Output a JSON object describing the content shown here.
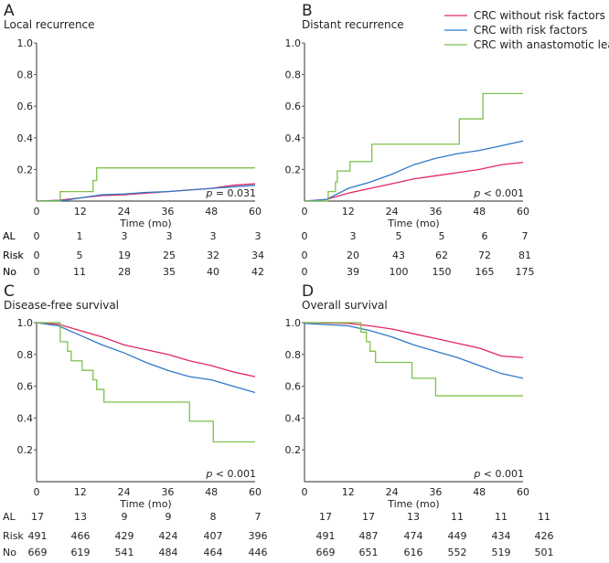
{
  "colors": {
    "no_risk": "#e2275f",
    "risk": "#2f7ac6",
    "leak": "#7fc14a",
    "axis": "#555555"
  },
  "legend": [
    {
      "key": "no_risk",
      "label": "CRC without risk factors"
    },
    {
      "key": "risk",
      "label": "CRC with risk  factors"
    },
    {
      "key": "leak",
      "label": "CRC with anastomotic leak"
    }
  ],
  "chart_data": [
    {
      "type": "line",
      "letter": "A",
      "title": "Local recurrence",
      "xlabel": "Time (mo)",
      "xlim": [
        0,
        60
      ],
      "ylim": [
        0,
        1
      ],
      "xticks": [
        "0",
        "12",
        "24",
        "36",
        "48",
        "60"
      ],
      "yticks": [
        "0.2",
        "0.4",
        "0.6",
        "0.8",
        "1.0"
      ],
      "p_value": "p = 0.031",
      "series": [
        {
          "key": "no_risk",
          "step": false,
          "points": [
            [
              0,
              0
            ],
            [
              3,
              0.002
            ],
            [
              6,
              0.005
            ],
            [
              12,
              0.02
            ],
            [
              18,
              0.035
            ],
            [
              24,
              0.04
            ],
            [
              30,
              0.05
            ],
            [
              36,
              0.06
            ],
            [
              42,
              0.07
            ],
            [
              48,
              0.08
            ],
            [
              54,
              0.1
            ],
            [
              60,
              0.11
            ]
          ]
        },
        {
          "key": "risk",
          "step": false,
          "points": [
            [
              0,
              0
            ],
            [
              8,
              0.005
            ],
            [
              12,
              0.02
            ],
            [
              18,
              0.04
            ],
            [
              24,
              0.045
            ],
            [
              30,
              0.055
            ],
            [
              36,
              0.06
            ],
            [
              42,
              0.07
            ],
            [
              48,
              0.08
            ],
            [
              54,
              0.09
            ],
            [
              60,
              0.1
            ]
          ]
        },
        {
          "key": "leak",
          "step": true,
          "points": [
            [
              0,
              0
            ],
            [
              6.5,
              0.06
            ],
            [
              15.5,
              0.13
            ],
            [
              16.5,
              0.21
            ],
            [
              60,
              0.21
            ]
          ]
        }
      ],
      "risk_table": [
        {
          "label": "AL",
          "values": [
            "0",
            "1",
            "3",
            "3",
            "3",
            "3"
          ]
        },
        {
          "label": "Risk",
          "values": [
            "0",
            "5",
            "19",
            "25",
            "32",
            "34"
          ]
        },
        {
          "label": "No",
          "values": [
            "0",
            "11",
            "28",
            "35",
            "40",
            "42"
          ]
        }
      ]
    },
    {
      "type": "line",
      "letter": "B",
      "title": "Distant recurrence",
      "xlabel": "Time (mo)",
      "xlim": [
        0,
        60
      ],
      "ylim": [
        0,
        1
      ],
      "xticks": [
        "0",
        "12",
        "24",
        "36",
        "48",
        "60"
      ],
      "yticks": [
        "0.2",
        "0.4",
        "0.6",
        "0.8",
        "1.0"
      ],
      "p_value": "p < 0.001",
      "series": [
        {
          "key": "no_risk",
          "step": false,
          "points": [
            [
              0,
              0
            ],
            [
              6,
              0.01
            ],
            [
              12,
              0.05
            ],
            [
              18,
              0.08
            ],
            [
              24,
              0.11
            ],
            [
              30,
              0.14
            ],
            [
              36,
              0.16
            ],
            [
              42,
              0.18
            ],
            [
              48,
              0.2
            ],
            [
              54,
              0.23
            ],
            [
              60,
              0.245
            ]
          ]
        },
        {
          "key": "risk",
          "step": false,
          "points": [
            [
              0,
              0
            ],
            [
              6,
              0.01
            ],
            [
              12,
              0.08
            ],
            [
              18,
              0.12
            ],
            [
              24,
              0.17
            ],
            [
              30,
              0.23
            ],
            [
              36,
              0.27
            ],
            [
              42,
              0.3
            ],
            [
              48,
              0.32
            ],
            [
              54,
              0.35
            ],
            [
              60,
              0.38
            ]
          ]
        },
        {
          "key": "leak",
          "step": true,
          "points": [
            [
              0,
              0
            ],
            [
              6.5,
              0.06
            ],
            [
              8.5,
              0.12
            ],
            [
              9,
              0.19
            ],
            [
              12.5,
              0.25
            ],
            [
              18.5,
              0.36
            ],
            [
              42.5,
              0.52
            ],
            [
              49,
              0.68
            ],
            [
              60,
              0.68
            ]
          ]
        }
      ],
      "risk_table": [
        {
          "label": "AL",
          "values": [
            "0",
            "3",
            "5",
            "5",
            "6",
            "7"
          ]
        },
        {
          "label": "Risk",
          "values": [
            "0",
            "20",
            "43",
            "62",
            "72",
            "81"
          ]
        },
        {
          "label": "No",
          "values": [
            "0",
            "39",
            "100",
            "150",
            "165",
            "175"
          ]
        }
      ]
    },
    {
      "type": "line",
      "letter": "C",
      "title": "Disease-free survival",
      "xlabel": "Time (mo)",
      "xlim": [
        0,
        60
      ],
      "ylim": [
        0,
        1
      ],
      "xticks": [
        "0",
        "12",
        "24",
        "36",
        "48",
        "60"
      ],
      "yticks": [
        "0.2",
        "0.4",
        "0.6",
        "0.8",
        "1.0"
      ],
      "p_value": "p < 0.001",
      "series": [
        {
          "key": "no_risk",
          "step": false,
          "points": [
            [
              0,
              1
            ],
            [
              6,
              0.99
            ],
            [
              12,
              0.95
            ],
            [
              18,
              0.91
            ],
            [
              24,
              0.86
            ],
            [
              30,
              0.83
            ],
            [
              36,
              0.8
            ],
            [
              42,
              0.76
            ],
            [
              48,
              0.73
            ],
            [
              54,
              0.69
            ],
            [
              60,
              0.66
            ]
          ]
        },
        {
          "key": "risk",
          "step": false,
          "points": [
            [
              0,
              1
            ],
            [
              6,
              0.98
            ],
            [
              12,
              0.92
            ],
            [
              18,
              0.86
            ],
            [
              24,
              0.81
            ],
            [
              30,
              0.75
            ],
            [
              36,
              0.7
            ],
            [
              42,
              0.66
            ],
            [
              48,
              0.64
            ],
            [
              54,
              0.6
            ],
            [
              60,
              0.56
            ]
          ]
        },
        {
          "key": "leak",
          "step": true,
          "points": [
            [
              0,
              1
            ],
            [
              6.5,
              0.88
            ],
            [
              8.5,
              0.82
            ],
            [
              9.5,
              0.76
            ],
            [
              12.5,
              0.7
            ],
            [
              15.5,
              0.64
            ],
            [
              16.5,
              0.58
            ],
            [
              18.5,
              0.5
            ],
            [
              42,
              0.38
            ],
            [
              48.5,
              0.25
            ],
            [
              60,
              0.25
            ]
          ]
        }
      ],
      "risk_table": [
        {
          "label": "AL",
          "values": [
            "17",
            "13",
            "9",
            "9",
            "8",
            "7"
          ]
        },
        {
          "label": "Risk",
          "values": [
            "491",
            "466",
            "429",
            "424",
            "407",
            "396"
          ]
        },
        {
          "label": "No",
          "values": [
            "669",
            "619",
            "541",
            "484",
            "464",
            "446"
          ]
        }
      ]
    },
    {
      "type": "line",
      "letter": "D",
      "title": "Overall survival",
      "xlabel": "Time (mo)",
      "xlim": [
        0,
        60
      ],
      "ylim": [
        0,
        1
      ],
      "xticks": [
        "0",
        "12",
        "24",
        "36",
        "48",
        "60"
      ],
      "yticks": [
        "0.2",
        "0.4",
        "0.6",
        "0.8",
        "1.0"
      ],
      "p_value": "p < 0.001",
      "series": [
        {
          "key": "no_risk",
          "step": false,
          "points": [
            [
              0,
              1
            ],
            [
              12,
              0.995
            ],
            [
              18,
              0.98
            ],
            [
              24,
              0.96
            ],
            [
              30,
              0.93
            ],
            [
              36,
              0.9
            ],
            [
              42,
              0.87
            ],
            [
              48,
              0.84
            ],
            [
              54,
              0.79
            ],
            [
              60,
              0.78
            ]
          ]
        },
        {
          "key": "risk",
          "step": false,
          "points": [
            [
              0,
              0.995
            ],
            [
              12,
              0.98
            ],
            [
              18,
              0.95
            ],
            [
              24,
              0.91
            ],
            [
              30,
              0.86
            ],
            [
              36,
              0.82
            ],
            [
              42,
              0.78
            ],
            [
              48,
              0.73
            ],
            [
              54,
              0.68
            ],
            [
              60,
              0.65
            ]
          ]
        },
        {
          "key": "leak",
          "step": true,
          "points": [
            [
              0,
              1
            ],
            [
              15.5,
              0.94
            ],
            [
              17,
              0.88
            ],
            [
              18,
              0.82
            ],
            [
              19.5,
              0.75
            ],
            [
              29.5,
              0.65
            ],
            [
              36,
              0.54
            ],
            [
              60,
              0.54
            ]
          ]
        }
      ],
      "risk_table": [
        {
          "label": "",
          "values": [
            "17",
            "17",
            "13",
            "11",
            "11",
            "11"
          ]
        },
        {
          "label": "",
          "values": [
            "491",
            "487",
            "474",
            "449",
            "434",
            "426"
          ]
        },
        {
          "label": "",
          "values": [
            "669",
            "651",
            "616",
            "552",
            "519",
            "501"
          ]
        }
      ]
    }
  ]
}
